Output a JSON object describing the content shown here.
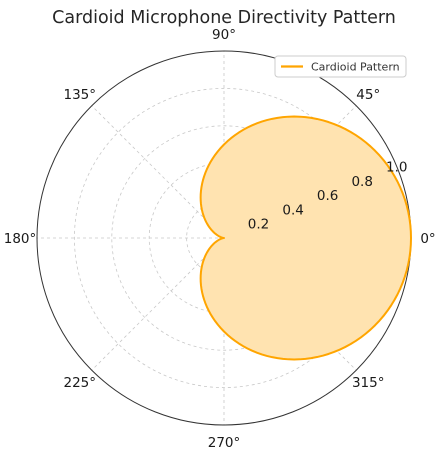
{
  "chart_data": {
    "type": "polar",
    "title": "Cardioid Microphone Directivity Pattern",
    "angle_unit": "degrees",
    "angular_ticks": [
      {
        "angle": 0,
        "label": "0°"
      },
      {
        "angle": 45,
        "label": "45°"
      },
      {
        "angle": 90,
        "label": "90°"
      },
      {
        "angle": 135,
        "label": "135°"
      },
      {
        "angle": 180,
        "label": "180°"
      },
      {
        "angle": 225,
        "label": "225°"
      },
      {
        "angle": 270,
        "label": "270°"
      },
      {
        "angle": 315,
        "label": "315°"
      }
    ],
    "radial_ticks": [
      {
        "value": 0.2,
        "label": "0.2"
      },
      {
        "value": 0.4,
        "label": "0.4"
      },
      {
        "value": 0.6,
        "label": "0.6"
      },
      {
        "value": 0.8,
        "label": "0.8"
      },
      {
        "value": 1.0,
        "label": "1.0"
      }
    ],
    "rlim": [
      0,
      1.0
    ],
    "grid": true,
    "legend_position": "top-right",
    "series": [
      {
        "name": "Cardioid Pattern",
        "color": "#FFA500",
        "fill_color": "#FFE3B0",
        "theta_deg": [
          0,
          15,
          30,
          45,
          60,
          75,
          90,
          105,
          120,
          135,
          150,
          165,
          180,
          195,
          210,
          225,
          240,
          255,
          270,
          285,
          300,
          315,
          330,
          345,
          360
        ],
        "r": [
          1.0,
          0.991,
          0.933,
          0.854,
          0.75,
          0.629,
          0.5,
          0.371,
          0.25,
          0.146,
          0.067,
          0.017,
          0.0,
          0.017,
          0.067,
          0.146,
          0.25,
          0.371,
          0.5,
          0.629,
          0.75,
          0.854,
          0.933,
          0.991,
          1.0
        ]
      }
    ]
  }
}
